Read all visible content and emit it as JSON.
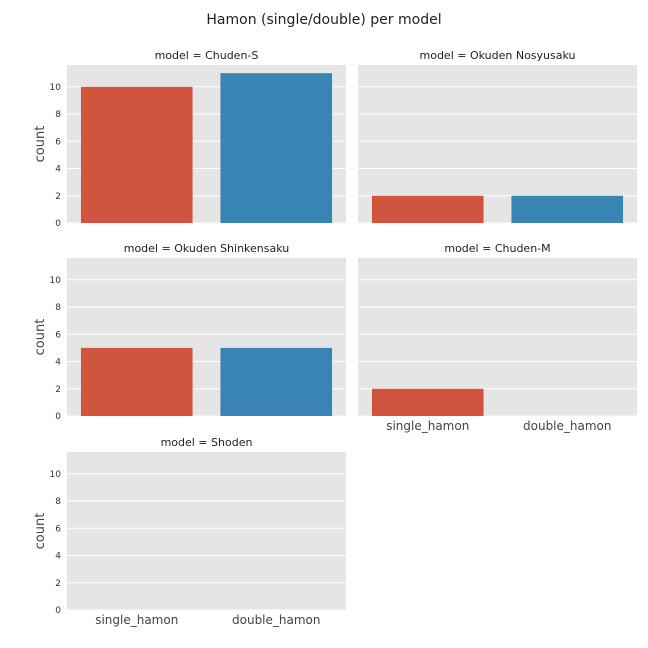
{
  "figure": {
    "title": "Hamon (single/double) per model"
  },
  "chart_data": {
    "type": "bar",
    "categories": [
      "single_hamon",
      "double_hamon"
    ],
    "ylabel": "count",
    "xlabel": "",
    "ylim": [
      0,
      11.6
    ],
    "yticks": [
      0,
      2,
      4,
      6,
      8,
      10
    ],
    "grid": true,
    "colors": {
      "single_hamon": "#d0543e",
      "double_hamon": "#3a84b3",
      "panel_background": "#e5e5e5",
      "grid": "#ffffff"
    },
    "facets": [
      {
        "title": "model = Chuden-S",
        "values": [
          10,
          11
        ]
      },
      {
        "title": "model = Okuden Nosyusaku",
        "values": [
          2,
          2
        ]
      },
      {
        "title": "model = Okuden Shinkensaku",
        "values": [
          5,
          5
        ]
      },
      {
        "title": "model = Chuden-M",
        "values": [
          2,
          0
        ]
      },
      {
        "title": "model = Shoden",
        "values": [
          0,
          0
        ]
      }
    ]
  }
}
